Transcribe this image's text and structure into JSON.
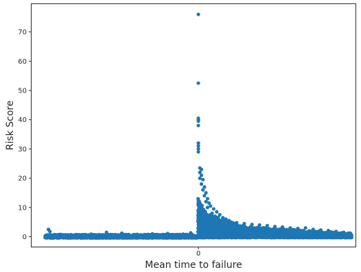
{
  "chart_data": {
    "type": "scatter",
    "title": "",
    "xlabel": "Mean time to failure",
    "ylabel": "Risk Score",
    "x_ticks": [
      0
    ],
    "x_tick_labels": [
      "0"
    ],
    "xlim": [
      -1,
      1
    ],
    "y_ticks": [
      0,
      10,
      20,
      30,
      40,
      50,
      60,
      70
    ],
    "ylim": [
      -4,
      80
    ],
    "grid": false,
    "marker_color": "#1f77b4",
    "series": [
      {
        "points": [
          [
            0,
            76
          ],
          [
            0,
            52.5
          ],
          [
            0,
            40.5
          ],
          [
            0,
            40
          ],
          [
            0,
            39.5
          ],
          [
            0,
            38
          ],
          [
            0,
            32
          ],
          [
            0,
            31
          ],
          [
            0,
            30
          ],
          [
            0,
            29
          ],
          [
            0.01,
            23.5
          ],
          [
            0.02,
            23
          ],
          [
            0.01,
            22
          ],
          [
            0.02,
            21
          ],
          [
            0.01,
            20
          ],
          [
            0.03,
            19.5
          ],
          [
            0.02,
            18
          ],
          [
            0.04,
            17
          ],
          [
            0.03,
            16
          ],
          [
            0.05,
            15
          ],
          [
            0.04,
            14
          ],
          [
            0.06,
            13
          ],
          [
            0.05,
            12
          ],
          [
            0.07,
            11.5
          ],
          [
            0.08,
            10.5
          ],
          [
            0.06,
            10
          ],
          [
            0.1,
            9.5
          ],
          [
            0.12,
            8.5
          ],
          [
            0.09,
            8
          ],
          [
            0.14,
            7.5
          ],
          [
            0.11,
            7
          ],
          [
            0.16,
            6.5
          ],
          [
            0.18,
            6
          ],
          [
            0.2,
            5.5
          ],
          [
            0.15,
            5
          ],
          [
            0.25,
            4.8
          ],
          [
            0.3,
            4.5
          ],
          [
            0.35,
            4.2
          ],
          [
            0.4,
            4
          ],
          [
            0.45,
            3.8
          ],
          [
            0.5,
            3.5
          ],
          [
            0.55,
            3.3
          ],
          [
            0.6,
            3
          ],
          [
            0.65,
            2.8
          ],
          [
            0.7,
            3
          ],
          [
            0.75,
            2.5
          ],
          [
            0.8,
            2.3
          ],
          [
            0.85,
            2.1
          ],
          [
            0.9,
            1.8
          ],
          [
            0.95,
            1.5
          ],
          [
            0.98,
            1.2
          ],
          [
            -0.98,
            2.5
          ],
          [
            -0.97,
            1.8
          ],
          [
            -0.9,
            0.8
          ],
          [
            -0.8,
            0.7
          ],
          [
            -0.7,
            0.9
          ],
          [
            -0.6,
            1.5
          ],
          [
            -0.5,
            1.2
          ],
          [
            -0.4,
            0.8
          ],
          [
            -0.3,
            1
          ],
          [
            -0.2,
            1.1
          ],
          [
            -0.1,
            0.9
          ],
          [
            -0.05,
            1.3
          ]
        ]
      }
    ],
    "bands": [
      {
        "x_from": -1.0,
        "x_to": -0.01,
        "y_min": -0.4,
        "y_max_start": 0.7,
        "y_max_end": 0.8
      },
      {
        "x_from": 0.0,
        "x_to": 0.05,
        "y_min": -0.3,
        "y_max_start": 13,
        "y_max_end": 8
      },
      {
        "x_from": 0.05,
        "x_to": 0.3,
        "y_min": -0.3,
        "y_max_start": 8,
        "y_max_end": 3.5
      },
      {
        "x_from": 0.3,
        "x_to": 1.0,
        "y_min": -0.3,
        "y_max_start": 3.5,
        "y_max_end": 1.2
      }
    ]
  }
}
